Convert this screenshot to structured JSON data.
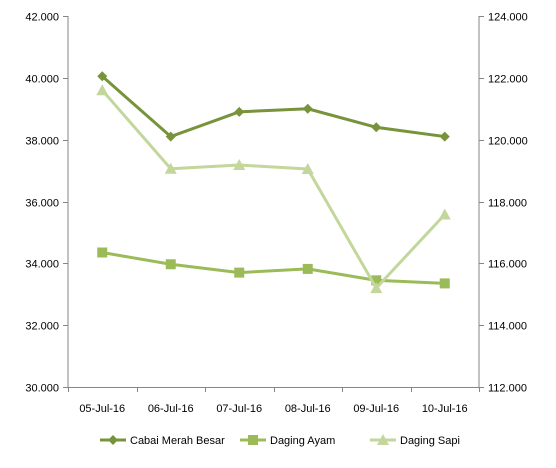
{
  "chart_data": {
    "type": "line",
    "categories": [
      "05-Jul-16",
      "06-Jul-16",
      "07-Jul-16",
      "08-Jul-16",
      "09-Jul-16",
      "10-Jul-16"
    ],
    "y_left": {
      "ticks": [
        30,
        32,
        34,
        36,
        38,
        40,
        42
      ],
      "tick_labels": [
        "30.000",
        "32.000",
        "34.000",
        "36.000",
        "38.000",
        "40.000",
        "42.000"
      ],
      "range": [
        30,
        42
      ]
    },
    "y_right": {
      "ticks": [
        112,
        114,
        116,
        118,
        120,
        122,
        124
      ],
      "tick_labels": [
        "112.000",
        "114.000",
        "116.000",
        "118.000",
        "120.000",
        "122.000",
        "124.000"
      ],
      "range": [
        112,
        124
      ]
    },
    "series": [
      {
        "name": "Cabai Merah Besar",
        "axis": "left",
        "marker": "diamond",
        "color": "#77933C",
        "values": [
          40.05,
          38.1,
          38.9,
          39.0,
          38.4,
          38.1
        ]
      },
      {
        "name": "Daging Ayam",
        "axis": "left",
        "marker": "square",
        "color": "#9BBB59",
        "values": [
          34.35,
          33.97,
          33.7,
          33.82,
          33.45,
          33.35
        ]
      },
      {
        "name": "Daging Sapi",
        "axis": "right",
        "marker": "triangle",
        "color": "#C3D69B",
        "values": [
          121.6,
          119.06,
          119.18,
          119.05,
          115.2,
          117.58
        ]
      }
    ],
    "grid": false,
    "legend": "bottom"
  }
}
